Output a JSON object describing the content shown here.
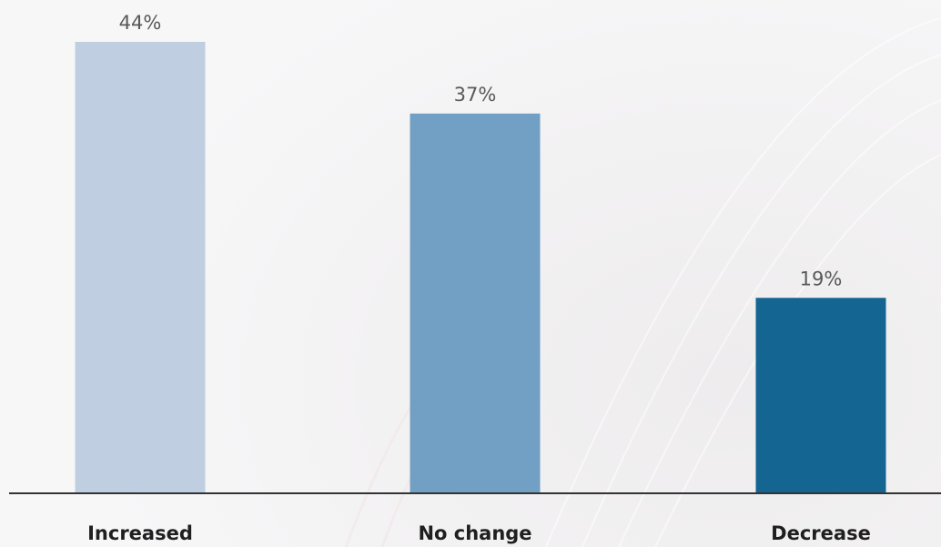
{
  "chart_data": {
    "type": "bar",
    "categories": [
      "Increased",
      "No change",
      "Decrease"
    ],
    "values": [
      44,
      37,
      19
    ],
    "value_labels": [
      "44%",
      "37%",
      "19%"
    ],
    "unit": "%",
    "ylim": [
      0,
      44
    ],
    "grid": false,
    "legend": "none",
    "colors": [
      "#bfcfe1",
      "#729fc4",
      "#146592"
    ]
  }
}
